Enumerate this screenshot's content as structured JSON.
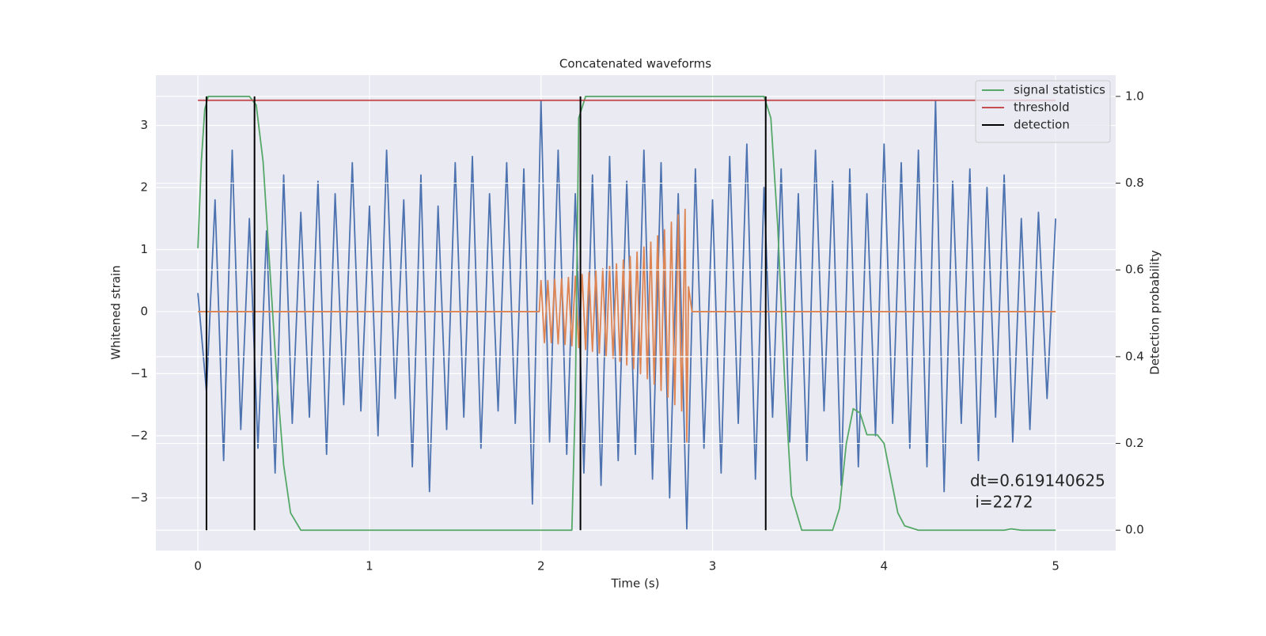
{
  "chart_data": {
    "type": "line",
    "title": "Concatenated waveforms",
    "xlabel": "Time (s)",
    "ylabel": "Whitened strain",
    "y2label": "Detection probability",
    "xlim": [
      -0.245,
      5.35
    ],
    "ylim": [
      -3.85,
      3.81
    ],
    "y2lim": [
      -0.047,
      1.049
    ],
    "xticks": [
      0,
      1,
      2,
      3,
      4,
      5
    ],
    "yticks": [
      {
        "value": -3,
        "label": "−3"
      },
      {
        "value": -2,
        "label": "−2"
      },
      {
        "value": -1,
        "label": "−1"
      },
      0,
      1,
      2,
      3
    ],
    "y2ticks": [
      {
        "value": 0,
        "label": "0.0"
      },
      0.2,
      0.4,
      0.6,
      0.8,
      {
        "value": 1,
        "label": "1.0"
      }
    ],
    "grid": true,
    "legend": "upper right",
    "background": "#eaeaf2",
    "series": [
      {
        "color": "#4c72b0",
        "x": [
          0,
          0.05,
          0.1,
          0.15,
          0.2,
          0.25,
          0.3,
          0.35,
          0.4,
          0.45,
          0.5,
          0.55,
          0.6,
          0.65,
          0.7,
          0.75,
          0.8,
          0.85,
          0.9,
          0.95,
          1.0,
          1.05,
          1.1,
          1.15,
          1.2,
          1.25,
          1.3,
          1.35,
          1.4,
          1.45,
          1.5,
          1.55,
          1.6,
          1.65,
          1.7,
          1.75,
          1.8,
          1.85,
          1.9,
          1.95,
          2.0,
          2.05,
          2.1,
          2.15,
          2.2,
          2.25,
          2.3,
          2.35,
          2.4,
          2.45,
          2.5,
          2.55,
          2.6,
          2.65,
          2.7,
          2.75,
          2.8,
          2.85,
          2.9,
          2.95,
          3.0,
          3.05,
          3.1,
          3.15,
          3.2,
          3.25,
          3.3,
          3.35,
          3.4,
          3.45,
          3.5,
          3.55,
          3.6,
          3.65,
          3.7,
          3.75,
          3.8,
          3.85,
          3.9,
          3.95,
          4.0,
          4.05,
          4.1,
          4.15,
          4.2,
          4.25,
          4.3,
          4.35,
          4.4,
          4.45,
          4.5,
          4.55,
          4.6,
          4.65,
          4.7,
          4.75,
          4.8,
          4.85,
          4.9,
          4.95,
          5.0
        ],
        "values": [
          0.3,
          -1.3,
          1.8,
          -2.4,
          2.6,
          -1.9,
          1.5,
          -2.2,
          1.3,
          -2.6,
          2.2,
          -1.8,
          1.6,
          -1.7,
          2.1,
          -2.3,
          1.9,
          -1.5,
          2.4,
          -1.6,
          1.7,
          -2.0,
          2.6,
          -1.4,
          1.8,
          -2.5,
          2.2,
          -2.9,
          1.7,
          -1.9,
          2.4,
          -1.7,
          2.5,
          -2.2,
          1.9,
          -1.6,
          2.4,
          -1.8,
          2.3,
          -3.1,
          3.4,
          -2.1,
          2.6,
          -2.3,
          1.9,
          -2.6,
          2.2,
          -2.8,
          2.5,
          -2.4,
          2.1,
          -2.3,
          2.6,
          -2.7,
          2.4,
          -3.0,
          1.9,
          -3.5,
          2.3,
          -2.2,
          1.8,
          -2.6,
          2.5,
          -1.8,
          2.7,
          -2.7,
          2.0,
          -1.7,
          2.3,
          -2.1,
          1.9,
          -2.4,
          2.6,
          -1.6,
          2.1,
          -2.8,
          2.3,
          -2.5,
          1.9,
          -2.0,
          2.7,
          -1.8,
          2.4,
          -2.2,
          2.6,
          -2.5,
          3.4,
          -2.9,
          2.1,
          -1.8,
          2.3,
          -2.4,
          2.0,
          -1.7,
          2.2,
          -2.1,
          1.5,
          -1.9,
          1.6,
          -1.4,
          1.5
        ]
      },
      {
        "color": "#dd8452",
        "x": [
          0,
          1.99,
          2.0,
          2.02,
          2.04,
          2.06,
          2.08,
          2.1,
          2.12,
          2.14,
          2.16,
          2.18,
          2.2,
          2.22,
          2.24,
          2.26,
          2.28,
          2.3,
          2.32,
          2.34,
          2.36,
          2.38,
          2.4,
          2.42,
          2.44,
          2.46,
          2.48,
          2.5,
          2.52,
          2.54,
          2.56,
          2.58,
          2.6,
          2.62,
          2.64,
          2.66,
          2.68,
          2.7,
          2.72,
          2.74,
          2.76,
          2.78,
          2.8,
          2.82,
          2.84,
          2.85,
          2.86,
          2.88,
          5.0
        ],
        "values": [
          0,
          0,
          0.5,
          -0.5,
          0.5,
          -0.5,
          0.52,
          -0.52,
          0.53,
          -0.53,
          0.55,
          -0.55,
          0.57,
          -0.58,
          0.6,
          -0.61,
          0.63,
          -0.64,
          0.66,
          -0.67,
          0.69,
          -0.71,
          0.73,
          -0.75,
          0.77,
          -0.8,
          0.83,
          -0.86,
          0.89,
          -0.92,
          0.96,
          -1.0,
          1.04,
          -1.08,
          1.12,
          -1.17,
          1.22,
          -1.27,
          1.32,
          -1.38,
          1.44,
          -1.5,
          1.56,
          -1.6,
          1.65,
          -2.1,
          0.4,
          0,
          0
        ]
      },
      {
        "name": "signal statistics",
        "color": "#55a868",
        "axis": "y2",
        "x": [
          0,
          0.02,
          0.04,
          0.06,
          0.3,
          0.34,
          0.38,
          0.42,
          0.46,
          0.5,
          0.54,
          0.6,
          2.18,
          2.2,
          2.22,
          2.26,
          3.3,
          3.34,
          3.38,
          3.42,
          3.46,
          3.52,
          3.7,
          3.74,
          3.78,
          3.82,
          3.86,
          3.9,
          3.96,
          4.0,
          4.04,
          4.08,
          4.12,
          4.2,
          4.7,
          4.74,
          4.8,
          5.0
        ],
        "values": [
          0.65,
          0.85,
          0.97,
          1.0,
          1.0,
          0.98,
          0.85,
          0.6,
          0.35,
          0.15,
          0.04,
          0.0,
          0.0,
          0.3,
          0.95,
          1.0,
          1.0,
          0.95,
          0.7,
          0.35,
          0.08,
          0.0,
          0.0,
          0.05,
          0.2,
          0.28,
          0.27,
          0.22,
          0.22,
          0.2,
          0.12,
          0.04,
          0.01,
          0.0,
          0.0,
          0.003,
          0.0,
          0.0
        ]
      },
      {
        "name": "threshold",
        "color": "#c44e52",
        "axis": "y2",
        "x": [
          0,
          5.0
        ],
        "values": [
          0.991,
          0.991
        ]
      },
      {
        "name": "detection",
        "color": "#000000",
        "axis": "y2",
        "kind": "vlines",
        "x": [
          0.05,
          0.33,
          2.23,
          3.31
        ],
        "ymin": 0,
        "ymax": 1
      }
    ],
    "annotation": [
      "dt=0.619140625",
      " i=2272"
    ]
  }
}
